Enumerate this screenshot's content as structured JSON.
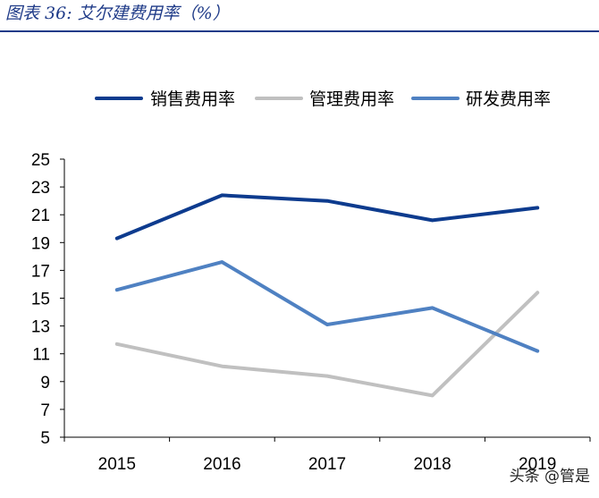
{
  "header": {
    "figure_title": "图表 36:  艾尔建费用率（%）"
  },
  "watermark": "头条 @管是",
  "colors": {
    "title": "#1f3b88",
    "axis": "#000000"
  },
  "chart_data": {
    "type": "line",
    "categories": [
      "2015",
      "2016",
      "2017",
      "2018",
      "2019"
    ],
    "series": [
      {
        "name": "销售费用率",
        "color": "#0d3b8e",
        "values": [
          19.3,
          22.4,
          22.0,
          20.6,
          21.5
        ]
      },
      {
        "name": "管理费用率",
        "color": "#c0c0c0",
        "values": [
          11.7,
          10.1,
          9.4,
          8.0,
          15.4
        ]
      },
      {
        "name": "研发费用率",
        "color": "#4f81c2",
        "values": [
          15.6,
          17.6,
          13.1,
          14.3,
          11.2
        ]
      }
    ],
    "yticks": [
      "25",
      "23",
      "21",
      "19",
      "17",
      "15",
      "13",
      "11",
      "9",
      "7",
      "5"
    ],
    "ylim": [
      5,
      25
    ],
    "legend_position": "top",
    "grid": false
  }
}
